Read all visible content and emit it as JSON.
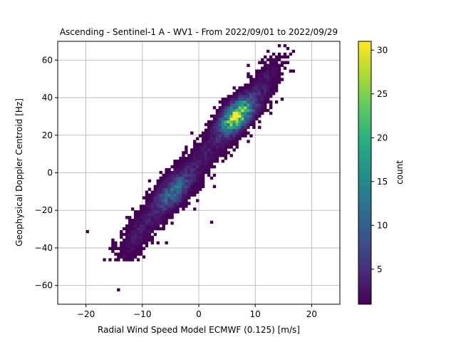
{
  "chart_data": {
    "type": "heatmap",
    "title": "Ascending - Sentinel-1 A - WV1 - From 2022/09/01 to 2022/09/29",
    "xlabel": "Radial Wind Speed Model ECMWF (0.125) [m/s]",
    "ylabel": "Geophysical Doppler Centroid [Hz]",
    "xlim": [
      -25,
      25
    ],
    "ylim": [
      -70,
      70
    ],
    "xticks": [
      -20,
      -10,
      0,
      10,
      20
    ],
    "yticks": [
      -60,
      -40,
      -20,
      0,
      20,
      40,
      60
    ],
    "grid": true,
    "colorbar": {
      "label": "count",
      "min": 1,
      "max": 31,
      "ticks": [
        5,
        10,
        15,
        20,
        25,
        30
      ],
      "colormap": "viridis"
    },
    "distribution": {
      "bin_width_x": 0.5,
      "bin_height_y": 1.5,
      "linear_trend": {
        "slope": 3.5,
        "intercept": 6
      },
      "core_region_x": [
        -17,
        17
      ],
      "core_region_y": [
        -47,
        67
      ],
      "peak": {
        "x": 6,
        "y": 31,
        "count": 31
      },
      "secondary_peak": {
        "x": -5,
        "y": -10,
        "count": 14
      },
      "outliers": [
        [
          -14.5,
          -63
        ],
        [
          2,
          -27
        ],
        [
          -11,
          -47
        ],
        [
          -20,
          -32
        ]
      ]
    }
  }
}
